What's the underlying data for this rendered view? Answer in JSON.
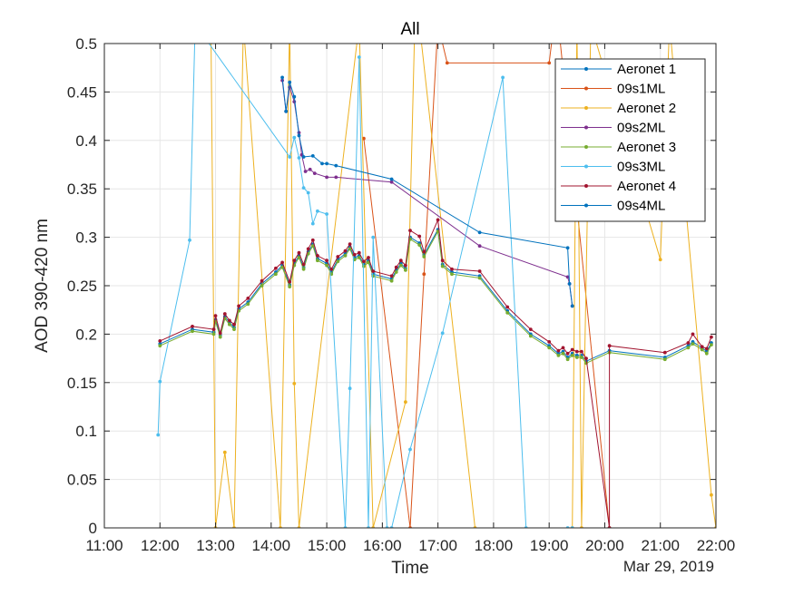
{
  "chart_data": {
    "type": "line",
    "title": "All",
    "xlabel": "Time",
    "ylabel": "AOD 390-420 nm",
    "date_label": "Mar 29, 2019",
    "xlim": [
      "11:00",
      "22:00"
    ],
    "ylim": [
      0,
      0.5
    ],
    "x_ticks": [
      "11:00",
      "12:00",
      "13:00",
      "14:00",
      "15:00",
      "16:00",
      "17:00",
      "18:00",
      "19:00",
      "20:00",
      "21:00",
      "22:00"
    ],
    "y_ticks": [
      "0",
      "0.05",
      "0.1",
      "0.15",
      "0.2",
      "0.25",
      "0.3",
      "0.35",
      "0.4",
      "0.45",
      "0.5"
    ],
    "grid": true,
    "legend_position": "top-right",
    "series": [
      {
        "name": "Aeronet 1",
        "color": "#0072BD",
        "x": [
          "12:00",
          "12:35",
          "12:58",
          "13:00",
          "13:05",
          "13:10",
          "13:15",
          "13:20",
          "13:25",
          "13:35",
          "13:50",
          "14:05",
          "14:12",
          "14:20",
          "14:25",
          "14:30",
          "14:35",
          "14:40",
          "14:45",
          "14:50",
          "15:00",
          "15:05",
          "15:12",
          "15:20",
          "15:25",
          "15:30",
          "15:35",
          "15:40",
          "15:45",
          "15:50",
          "16:10",
          "16:15",
          "16:20",
          "16:25",
          "16:30",
          "16:40",
          "16:45",
          "17:00",
          "17:05",
          "17:15",
          "17:45",
          "18:15",
          "18:40",
          "19:00",
          "19:10",
          "19:15",
          "19:20",
          "19:25",
          "19:30",
          "19:35",
          "19:40",
          "20:05",
          "21:05",
          "21:30",
          "21:35",
          "21:45",
          "21:50",
          "21:55"
        ],
        "y": [
          0.19,
          0.205,
          0.202,
          0.215,
          0.199,
          0.218,
          0.212,
          0.207,
          0.226,
          0.233,
          0.252,
          0.264,
          0.271,
          0.251,
          0.273,
          0.281,
          0.269,
          0.285,
          0.293,
          0.278,
          0.273,
          0.264,
          0.277,
          0.283,
          0.29,
          0.279,
          0.281,
          0.272,
          0.276,
          0.262,
          0.257,
          0.266,
          0.273,
          0.268,
          0.3,
          0.294,
          0.282,
          0.308,
          0.272,
          0.264,
          0.26,
          0.224,
          0.2,
          0.188,
          0.18,
          0.182,
          0.176,
          0.18,
          0.178,
          0.178,
          0.172,
          0.183,
          0.176,
          0.188,
          0.192,
          0.186,
          0.182,
          0.191
        ]
      },
      {
        "name": "09s1ML",
        "color": "#D95319",
        "x": [
          "15:40",
          "16:30",
          "16:45",
          "17:00",
          "17:10",
          "19:00",
          "19:05",
          "19:10",
          "20:05"
        ],
        "y": [
          0.402,
          0.0,
          0.262,
          0.52,
          0.48,
          0.48,
          0.52,
          0.52,
          0.0
        ]
      },
      {
        "name": "Aeronet 2",
        "color": "#EDB120",
        "x": [
          "12:55",
          "13:00",
          "13:10",
          "13:20",
          "13:30",
          "14:10",
          "14:20",
          "14:25",
          "14:30",
          "15:35",
          "15:50",
          "16:25",
          "16:35",
          "16:40",
          "17:40",
          "19:25",
          "19:30",
          "19:35",
          "19:45",
          "21:00",
          "21:10",
          "21:55",
          "22:00"
        ],
        "y": [
          0.52,
          0.0,
          0.078,
          0.0,
          0.52,
          0.0,
          0.52,
          0.149,
          0.0,
          0.52,
          0.0,
          0.13,
          0.52,
          0.52,
          0.0,
          0.0,
          0.52,
          0.0,
          0.52,
          0.277,
          0.52,
          0.034,
          0.0
        ]
      },
      {
        "name": "09s2ML",
        "color": "#7E2F8E",
        "x": [
          "14:12",
          "14:16",
          "14:20",
          "14:25",
          "14:30",
          "14:33",
          "14:37",
          "14:42",
          "14:47",
          "15:00",
          "15:10",
          "16:10",
          "17:45",
          "19:20",
          "19:22",
          "19:25"
        ],
        "y": [
          0.462,
          0.43,
          0.455,
          0.44,
          0.408,
          0.385,
          0.368,
          0.37,
          0.366,
          0.362,
          0.362,
          0.357,
          0.291,
          0.259,
          0.252,
          0.229
        ]
      },
      {
        "name": "Aeronet 3",
        "color": "#77AC30",
        "x": [
          "12:00",
          "12:35",
          "12:58",
          "13:00",
          "13:05",
          "13:10",
          "13:15",
          "13:20",
          "13:25",
          "13:35",
          "13:50",
          "14:05",
          "14:12",
          "14:20",
          "14:25",
          "14:30",
          "14:35",
          "14:40",
          "14:45",
          "14:50",
          "15:00",
          "15:05",
          "15:12",
          "15:20",
          "15:25",
          "15:30",
          "15:35",
          "15:40",
          "15:45",
          "15:50",
          "16:10",
          "16:15",
          "16:20",
          "16:25",
          "16:30",
          "16:40",
          "16:45",
          "17:00",
          "17:05",
          "17:15",
          "17:45",
          "18:15",
          "18:40",
          "19:00",
          "19:10",
          "19:15",
          "19:20",
          "19:25",
          "19:30",
          "19:35",
          "19:40",
          "20:05",
          "21:05",
          "21:30",
          "21:35",
          "21:45",
          "21:50",
          "21:55"
        ],
        "y": [
          0.188,
          0.203,
          0.2,
          0.213,
          0.197,
          0.216,
          0.21,
          0.205,
          0.224,
          0.231,
          0.25,
          0.262,
          0.269,
          0.249,
          0.271,
          0.279,
          0.267,
          0.283,
          0.291,
          0.276,
          0.271,
          0.262,
          0.275,
          0.281,
          0.288,
          0.277,
          0.279,
          0.27,
          0.274,
          0.26,
          0.255,
          0.264,
          0.271,
          0.266,
          0.298,
          0.292,
          0.28,
          0.306,
          0.27,
          0.262,
          0.258,
          0.222,
          0.198,
          0.186,
          0.178,
          0.18,
          0.174,
          0.178,
          0.176,
          0.176,
          0.17,
          0.181,
          0.174,
          0.186,
          0.19,
          0.184,
          0.18,
          0.189
        ]
      },
      {
        "name": "09s3ML",
        "color": "#4DBEEE",
        "x": [
          "11:58",
          "12:00",
          "12:32",
          "12:38",
          "14:20",
          "14:25",
          "14:30",
          "14:35",
          "14:40",
          "14:45",
          "14:50",
          "15:00",
          "15:20",
          "15:25",
          "15:35",
          "15:45",
          "15:50",
          "16:05",
          "16:10",
          "16:30",
          "17:05",
          "18:10",
          "18:35",
          "19:20",
          "19:25"
        ],
        "y": [
          0.096,
          0.151,
          0.297,
          0.52,
          0.383,
          0.403,
          0.382,
          0.351,
          0.346,
          0.314,
          0.327,
          0.324,
          0.0,
          0.144,
          0.486,
          0.0,
          0.3,
          0.0,
          0.0,
          0.081,
          0.201,
          0.465,
          0.0,
          0.0,
          0.0
        ]
      },
      {
        "name": "Aeronet 4",
        "color": "#A2142F",
        "x": [
          "12:00",
          "12:35",
          "12:58",
          "13:00",
          "13:05",
          "13:10",
          "13:15",
          "13:20",
          "13:25",
          "13:35",
          "13:50",
          "14:05",
          "14:12",
          "14:20",
          "14:25",
          "14:30",
          "14:35",
          "14:40",
          "14:45",
          "14:50",
          "15:00",
          "15:05",
          "15:12",
          "15:20",
          "15:25",
          "15:30",
          "15:35",
          "15:40",
          "15:45",
          "15:50",
          "16:10",
          "16:15",
          "16:20",
          "16:25",
          "16:30",
          "16:40",
          "16:45",
          "17:00",
          "17:05",
          "17:15",
          "17:45",
          "18:15",
          "18:40",
          "19:00",
          "19:10",
          "19:15",
          "19:20",
          "19:25",
          "19:30",
          "19:35",
          "19:40",
          "20:05",
          "20:05",
          "21:05",
          "21:30",
          "21:35",
          "21:45",
          "21:50",
          "21:55"
        ],
        "y": [
          0.193,
          0.208,
          0.205,
          0.219,
          0.201,
          0.221,
          0.214,
          0.21,
          0.229,
          0.237,
          0.255,
          0.268,
          0.274,
          0.254,
          0.276,
          0.284,
          0.272,
          0.288,
          0.297,
          0.281,
          0.276,
          0.267,
          0.28,
          0.286,
          0.293,
          0.282,
          0.284,
          0.275,
          0.279,
          0.265,
          0.26,
          0.269,
          0.276,
          0.271,
          0.307,
          0.301,
          0.285,
          0.318,
          0.276,
          0.267,
          0.265,
          0.228,
          0.205,
          0.192,
          0.183,
          0.186,
          0.18,
          0.184,
          0.182,
          0.182,
          0.175,
          0.0,
          0.188,
          0.181,
          0.191,
          0.2,
          0.187,
          0.185,
          0.197
        ]
      },
      {
        "name": "09s4ML",
        "color": "#0072BD",
        "x": [
          "14:12",
          "14:16",
          "14:20",
          "14:25",
          "14:30",
          "14:35",
          "14:45",
          "14:55",
          "15:00",
          "15:10",
          "16:10",
          "17:45",
          "19:20",
          "19:22",
          "19:25"
        ],
        "y": [
          0.465,
          0.43,
          0.46,
          0.445,
          0.405,
          0.383,
          0.384,
          0.376,
          0.376,
          0.374,
          0.36,
          0.305,
          0.289,
          0.252,
          0.229
        ]
      }
    ]
  }
}
